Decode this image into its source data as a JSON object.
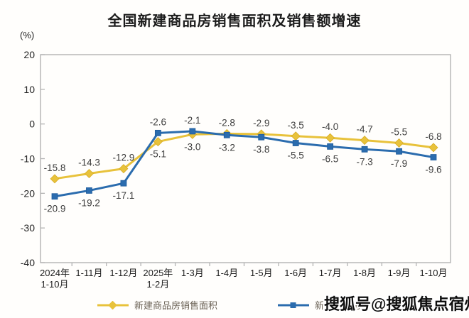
{
  "title": "全国新建商品房销售面积及销售额增速",
  "unit_label": "(%)",
  "watermark": "搜狐号@搜狐焦点宿州站",
  "colors": {
    "area_line": "#E8C23B",
    "amount_line": "#2B6CAE",
    "frame": "#b3b3b3",
    "data_label_text": "#3d3d3d",
    "axis_text": "#262626",
    "legend_text": "#6b6256"
  },
  "chart_data": {
    "type": "line",
    "title": "全国新建商品房销售面积及销售额增速",
    "xlabel": "",
    "ylabel": "(%)",
    "ylim": [
      -40,
      20
    ],
    "yticks": [
      20,
      10,
      0,
      -10,
      -20,
      -30,
      -40
    ],
    "grid": false,
    "legend_position": "bottom",
    "categories": [
      "2024年\n1-10月",
      "1-11月",
      "1-12月",
      "2025年\n1-2月",
      "1-3月",
      "1-4月",
      "1-5月",
      "1-6月",
      "1-7月",
      "1-8月",
      "1-9月",
      "1-10月"
    ],
    "series": [
      {
        "name": "新建商品房销售面积",
        "color": "#E8C23B",
        "marker": "diamond",
        "values": [
          -15.8,
          -14.3,
          -12.9,
          -5.1,
          -3.0,
          -2.8,
          -2.9,
          -3.5,
          -4.0,
          -4.7,
          -5.5,
          -6.8
        ]
      },
      {
        "name": "新建商品房销售额",
        "color": "#2B6CAE",
        "marker": "square",
        "values": [
          -20.9,
          -19.2,
          -17.1,
          -2.6,
          -2.1,
          -3.2,
          -3.8,
          -5.5,
          -6.5,
          -7.3,
          -7.9,
          -9.6
        ]
      }
    ]
  }
}
